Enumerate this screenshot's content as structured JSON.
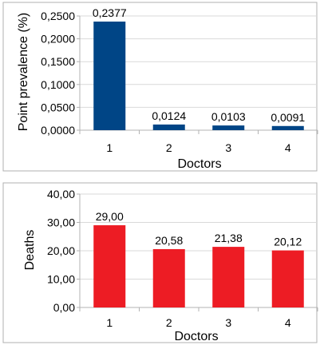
{
  "chart_data": [
    {
      "type": "bar",
      "categories": [
        "1",
        "2",
        "3",
        "4"
      ],
      "values": [
        0.2377,
        0.0124,
        0.0103,
        0.0091
      ],
      "value_labels": [
        "0,2377",
        "0,0124",
        "0,0103",
        "0,0091"
      ],
      "ylim": [
        0,
        0.25
      ],
      "yticks": [
        0,
        0.05,
        0.1,
        0.15,
        0.2,
        0.25
      ],
      "ytick_labels": [
        "0,0000",
        "0,0500",
        "0,1000",
        "0,1500",
        "0,2000",
        "0,2500"
      ],
      "xlabel": "Doctors",
      "ylabel": "Point prevalence (%)",
      "color": "#004586",
      "grid": true,
      "legend": "none"
    },
    {
      "type": "bar",
      "categories": [
        "1",
        "2",
        "3",
        "4"
      ],
      "values": [
        29.0,
        20.58,
        21.38,
        20.12
      ],
      "value_labels": [
        "29,00",
        "20,58",
        "21,38",
        "20,12"
      ],
      "ylim": [
        0,
        40
      ],
      "yticks": [
        0,
        10,
        20,
        30,
        40
      ],
      "ytick_labels": [
        "0,00",
        "10,00",
        "20,00",
        "30,00",
        "40,00"
      ],
      "xlabel": "Doctors",
      "ylabel": "Deaths",
      "color": "#ed1c24",
      "grid": true,
      "legend": "none"
    }
  ]
}
